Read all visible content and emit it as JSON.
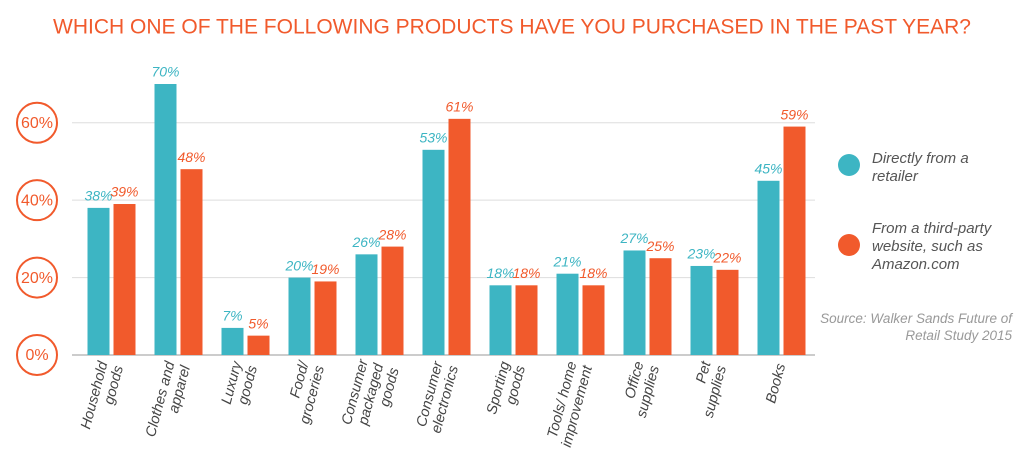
{
  "chart_data": {
    "type": "bar",
    "title": "WHICH ONE OF THE FOLLOWING PRODUCTS HAVE YOU PURCHASED IN THE PAST YEAR?",
    "categories": [
      [
        "Household",
        "goods"
      ],
      [
        "Clothes and",
        "apparel"
      ],
      [
        "Luxury",
        "goods"
      ],
      [
        "Food/",
        "groceries"
      ],
      [
        "Consumer",
        "packaged",
        "goods"
      ],
      [
        "Consumer",
        "electronics"
      ],
      [
        "Sporting",
        "goods"
      ],
      [
        "Tools/ home",
        "improvement"
      ],
      [
        "Office",
        "supplies"
      ],
      [
        "Pet",
        "supplies"
      ],
      [
        "Books"
      ]
    ],
    "series": [
      {
        "name": "Directly from a retailer",
        "color": "#3db5c3",
        "values": [
          38,
          70,
          7,
          20,
          26,
          53,
          18,
          21,
          27,
          23,
          45
        ],
        "value_labels": [
          "38%",
          "70%",
          "7%",
          "20%",
          "26%",
          "53%",
          "18%",
          "21%",
          "27%",
          "23%",
          "45%"
        ]
      },
      {
        "name": "From a third-party website, such as Amazon.com",
        "color": "#f15a2c",
        "values": [
          39,
          48,
          5,
          19,
          28,
          61,
          18,
          18,
          25,
          22,
          59
        ],
        "value_labels": [
          "39%",
          "48%",
          "5%",
          "19%",
          "28%",
          "61%",
          "18%",
          "18%",
          "25%",
          "22%",
          "59%"
        ]
      }
    ],
    "ylim": [
      0,
      70
    ],
    "yticks": [
      {
        "value": 0,
        "label": "0%"
      },
      {
        "value": 20,
        "label": "20%"
      },
      {
        "value": 40,
        "label": "40%"
      },
      {
        "value": 60,
        "label": "60%"
      }
    ],
    "grid": true,
    "legend": "right",
    "source": "Source: Walker Sands Future of Retail Study 2015"
  }
}
